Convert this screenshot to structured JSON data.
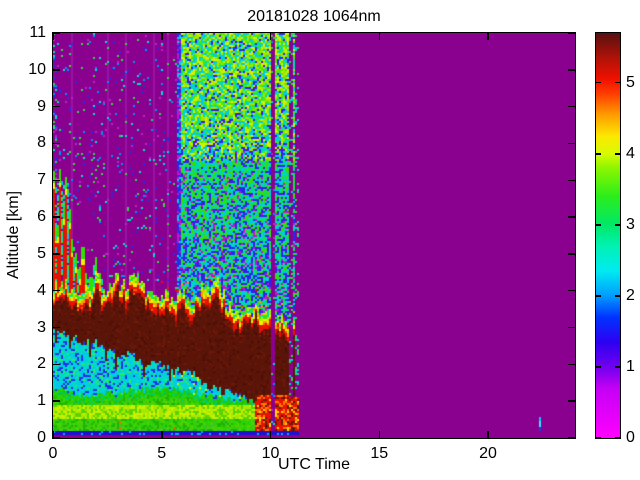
{
  "chart_data": {
    "type": "heatmap",
    "title": "20181028 1064nm",
    "xlabel": "UTC Time",
    "ylabel": "Altitude [km]",
    "xlim": [
      0,
      24
    ],
    "ylim": [
      0,
      11
    ],
    "xticks": [
      0,
      5,
      10,
      15,
      20
    ],
    "yticks": [
      0,
      1,
      2,
      3,
      4,
      5,
      6,
      7,
      8,
      9,
      10,
      11
    ],
    "grid": false,
    "description": "Lidar attenuated backscatter time-height plot, 1064 nm, 2018-10-28. Data present t=0-11.3 UTC; uniform no-data purple afterwards except a small cyan artifact near t=22.4, 0.2-0.55 km.",
    "colorbar": {
      "min": 0,
      "max": 5.7,
      "ticks": [
        0,
        1,
        2,
        3,
        4,
        5
      ],
      "stops": [
        [
          0.0,
          "#ff00ff"
        ],
        [
          0.7,
          "#c400f4"
        ],
        [
          1.0,
          "#7100ee"
        ],
        [
          1.35,
          "#2d00f2"
        ],
        [
          1.7,
          "#0033ff"
        ],
        [
          2.0,
          "#009cff"
        ],
        [
          2.35,
          "#00eaf0"
        ],
        [
          2.7,
          "#00f2b4"
        ],
        [
          3.0,
          "#00e868"
        ],
        [
          3.4,
          "#2aee1c"
        ],
        [
          3.8,
          "#8cf600"
        ],
        [
          4.0,
          "#d8fa00"
        ],
        [
          4.25,
          "#fce800"
        ],
        [
          4.55,
          "#ff9c00"
        ],
        [
          4.85,
          "#ff3c00"
        ],
        [
          5.05,
          "#f01000"
        ],
        [
          5.35,
          "#b01208"
        ],
        [
          5.7,
          "#571110"
        ]
      ]
    },
    "palette": {
      "background_nodata": "#8a0190",
      "maroon": "#5a1408",
      "maroon_light": "#6b1a08",
      "maroon_dark": "#4a0f06",
      "red": "#e81200",
      "orange": "#ff9c00",
      "yellow": "#f5f000",
      "green_band": "#2ad400",
      "green_bright": "#a8e800",
      "cyan": "#00d8c8",
      "light_blue": "#00c8f0",
      "blue": "#2828f0",
      "dark_blue_line": "#1b12d2",
      "magenta": "#c414c8",
      "streak_purple": "#9b12a2"
    },
    "features": {
      "data_end_t": 11.3,
      "night_day_transition_t": 5.66,
      "layer_top_km": [
        [
          0,
          3.55
        ],
        [
          0.4,
          3.7
        ],
        [
          0.8,
          3.75
        ],
        [
          1.2,
          3.5
        ],
        [
          1.6,
          3.45
        ],
        [
          2.0,
          4.0
        ],
        [
          2.3,
          3.55
        ],
        [
          2.7,
          3.65
        ],
        [
          3.0,
          4.0
        ],
        [
          3.3,
          3.7
        ],
        [
          3.6,
          3.85
        ],
        [
          3.9,
          4.1
        ],
        [
          4.2,
          3.6
        ],
        [
          4.5,
          3.65
        ],
        [
          4.8,
          3.45
        ],
        [
          5.1,
          3.4
        ],
        [
          5.4,
          3.35
        ],
        [
          5.7,
          3.3
        ],
        [
          6.0,
          3.6
        ],
        [
          6.3,
          3.35
        ],
        [
          6.6,
          3.5
        ],
        [
          6.9,
          3.75
        ],
        [
          7.2,
          3.5
        ],
        [
          7.5,
          3.8
        ],
        [
          7.8,
          3.45
        ],
        [
          8.1,
          3.2
        ],
        [
          8.4,
          3.05
        ],
        [
          8.7,
          3.0
        ],
        [
          9.0,
          3.1
        ],
        [
          9.3,
          3.3
        ],
        [
          9.6,
          2.95
        ],
        [
          9.9,
          3.1
        ],
        [
          10.2,
          2.75
        ],
        [
          10.5,
          2.95
        ],
        [
          10.8,
          2.7
        ],
        [
          11.1,
          2.6
        ],
        [
          11.3,
          2.55
        ]
      ],
      "layer_bottom_km": [
        [
          0,
          2.9
        ],
        [
          0.5,
          2.8
        ],
        [
          1.0,
          2.75
        ],
        [
          1.5,
          2.6
        ],
        [
          2.0,
          2.55
        ],
        [
          2.5,
          2.4
        ],
        [
          3.0,
          2.3
        ],
        [
          3.5,
          2.25
        ],
        [
          4.0,
          2.1
        ],
        [
          4.5,
          2.0
        ],
        [
          5.0,
          1.95
        ],
        [
          5.5,
          1.85
        ],
        [
          6.0,
          1.8
        ],
        [
          6.5,
          1.75
        ],
        [
          7.0,
          1.45
        ],
        [
          7.5,
          1.35
        ],
        [
          8.0,
          1.25
        ],
        [
          8.5,
          1.15
        ],
        [
          9.0,
          1.0
        ],
        [
          9.5,
          0.8
        ],
        [
          10.0,
          0.65
        ],
        [
          10.5,
          0.55
        ],
        [
          11.3,
          0.5
        ]
      ],
      "green_band_top_km": [
        [
          0,
          1.4
        ],
        [
          1,
          1.2
        ],
        [
          2,
          1.1
        ],
        [
          3,
          1.25
        ],
        [
          4,
          1.3
        ],
        [
          5,
          1.35
        ],
        [
          6,
          1.3
        ],
        [
          7,
          1.15
        ],
        [
          8,
          1.05
        ],
        [
          9,
          1.0
        ],
        [
          9.3,
          0.95
        ]
      ],
      "surface_blue_line_km": [
        0.08,
        0.17
      ],
      "spikes_t_heightkm": [
        [
          0.06,
          7.25
        ],
        [
          0.18,
          5.8
        ],
        [
          0.32,
          7.3
        ],
        [
          0.48,
          6.3
        ],
        [
          0.6,
          7.1
        ],
        [
          0.75,
          6.2
        ],
        [
          0.9,
          5.4
        ],
        [
          1.05,
          5.0
        ],
        [
          1.2,
          4.65
        ],
        [
          1.38,
          5.2
        ],
        [
          1.55,
          4.5
        ],
        [
          1.75,
          4.35
        ],
        [
          1.95,
          4.9
        ],
        [
          2.15,
          4.5
        ]
      ],
      "red_surface_zone_t": [
        9.25,
        11.3
      ],
      "purple_gap_stripes_t": [
        10.05,
        10.16
      ],
      "striped_zone_t": [
        10.87,
        11.28
      ],
      "night_streaks_t": [
        0.9,
        1.02,
        2.2,
        2.55,
        3.35,
        4.05,
        4.65,
        5.3
      ],
      "artifact": {
        "t": [
          22.33,
          22.48
        ],
        "alt_km": [
          0.2,
          0.56
        ]
      }
    }
  }
}
